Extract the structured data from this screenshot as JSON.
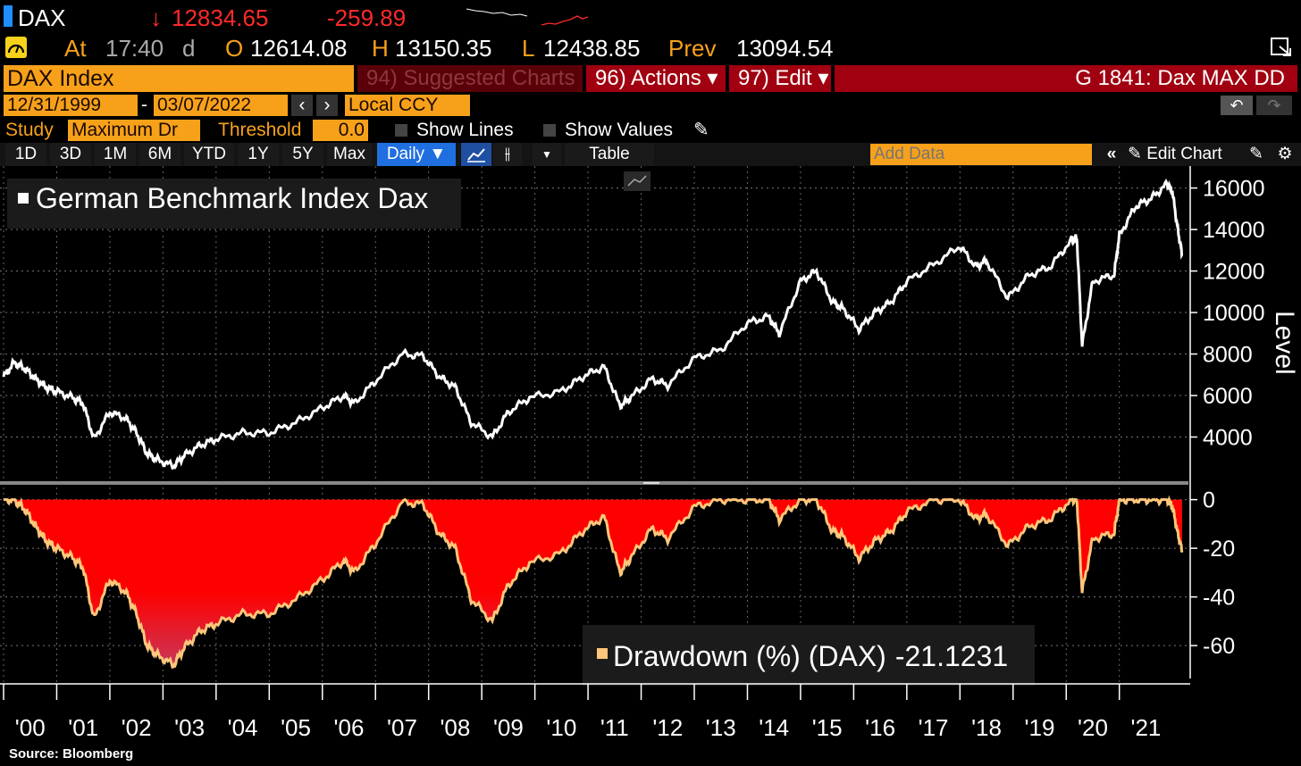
{
  "quote": {
    "ticker": "DAX",
    "arrow": "↓",
    "last": "12834.65",
    "change": "-259.89",
    "at_label": "At",
    "time": "17:40",
    "time_suffix": "d",
    "open_label": "O",
    "open": "12614.08",
    "high_label": "H",
    "high": "13150.35",
    "low_label": "L",
    "low": "12438.85",
    "prev_label": "Prev",
    "prev": "13094.54"
  },
  "header": {
    "security": "DAX Index",
    "suggested": "94) Suggested Charts",
    "actions": "96) Actions ▾",
    "edit": "97) Edit ▾",
    "chart_id": "G 1841: Dax MAX DD"
  },
  "range": {
    "start": "12/31/1999",
    "sep": "-",
    "end": "03/07/2022",
    "currency": "Local CCY"
  },
  "study": {
    "label": "Study",
    "value": "Maximum Dr",
    "threshold_label": "Threshold",
    "threshold": "0.0",
    "show_lines": "Show Lines",
    "show_values": "Show Values"
  },
  "toolbar": {
    "periods": [
      "1D",
      "3D",
      "1M",
      "6M",
      "YTD",
      "1Y",
      "5Y",
      "Max"
    ],
    "frequency": "Daily ▼",
    "table": "Table",
    "add_data_placeholder": "Add Data",
    "edit_chart": "Edit Chart"
  },
  "source": "Source:  Bloomberg",
  "colors": {
    "accent_orange": "#f7a11a",
    "header_red": "#a00010",
    "drawdown_fill": "#ff0000",
    "drawdown_line": "#ffc77a",
    "price_line": "#ffffff"
  },
  "chart_data": [
    {
      "type": "line",
      "title": "German Benchmark Index Dax",
      "ylabel": "Level",
      "ylim": [
        2000,
        16800
      ],
      "yticks": [
        4000,
        6000,
        8000,
        10000,
        12000,
        14000,
        16000
      ],
      "x": [
        2000.0,
        2000.2,
        2000.4,
        2000.6,
        2000.8,
        2001.0,
        2001.3,
        2001.5,
        2001.7,
        2002.0,
        2002.3,
        2002.5,
        2002.7,
        2002.9,
        2003.2,
        2003.4,
        2003.7,
        2004.0,
        2004.5,
        2005.0,
        2005.5,
        2006.0,
        2006.4,
        2006.6,
        2007.0,
        2007.5,
        2007.9,
        2008.2,
        2008.5,
        2008.8,
        2009.2,
        2009.5,
        2009.9,
        2010.5,
        2010.9,
        2011.3,
        2011.6,
        2011.8,
        2012.2,
        2012.5,
        2013.0,
        2013.5,
        2014.0,
        2014.4,
        2014.6,
        2015.0,
        2015.3,
        2015.6,
        2015.8,
        2016.1,
        2016.4,
        2016.7,
        2017.0,
        2017.5,
        2018.0,
        2018.3,
        2018.5,
        2018.9,
        2019.3,
        2019.7,
        2020.1,
        2020.2,
        2020.3,
        2020.5,
        2020.9,
        2021.0,
        2021.3,
        2021.6,
        2021.9,
        2022.0,
        2022.1,
        2022.18
      ],
      "series": [
        {
          "values": [
            6900,
            7600,
            7300,
            6800,
            6400,
            6200,
            5900,
            5600,
            3900,
            5200,
            4900,
            4200,
            3200,
            2900,
            2600,
            3100,
            3600,
            3900,
            4200,
            4200,
            4700,
            5400,
            6000,
            5600,
            6700,
            8000,
            7900,
            6900,
            6400,
            4700,
            4000,
            5200,
            5900,
            6200,
            6900,
            7400,
            5500,
            5900,
            6800,
            6500,
            7800,
            8200,
            9500,
            9800,
            9000,
            11500,
            12000,
            10500,
            10200,
            9200,
            10000,
            10500,
            11500,
            12300,
            13200,
            12200,
            12500,
            10700,
            11800,
            12200,
            13500,
            13600,
            8400,
            11500,
            11800,
            13700,
            15100,
            15500,
            16200,
            15800,
            14000,
            12800
          ]
        }
      ]
    },
    {
      "type": "area",
      "series": [
        {
          "name": "Drawdown (%) (DAX)",
          "last_value": "-21.1231",
          "values": [
            0,
            0,
            -4,
            -11,
            -17,
            -20,
            -24,
            -28,
            -49,
            -33,
            -38,
            -47,
            -60,
            -64,
            -68,
            -61,
            -54,
            -51,
            -47,
            -47,
            -41,
            -33,
            -25,
            -30,
            -18,
            -1,
            -2,
            -14,
            -20,
            -41,
            -50,
            -35,
            -26,
            -22,
            -13,
            -7,
            -30,
            -24,
            -12,
            -16,
            -3,
            0,
            0,
            0,
            -8,
            0,
            0,
            -13,
            -15,
            -24,
            -17,
            -13,
            -5,
            0,
            0,
            -8,
            -6,
            -19,
            -11,
            -8,
            0,
            0,
            -38,
            -16,
            -14,
            0,
            0,
            0,
            0,
            -3,
            -14,
            -21
          ]
        }
      ],
      "ylim": [
        -75,
        5
      ],
      "yticks": [
        0,
        -20,
        -40,
        -60
      ]
    }
  ],
  "x_axis_labels": [
    "'00",
    "'01",
    "'02",
    "'03",
    "'04",
    "'05",
    "'06",
    "'07",
    "'08",
    "'09",
    "'10",
    "'11",
    "'12",
    "'13",
    "'14",
    "'15",
    "'16",
    "'17",
    "'18",
    "'19",
    "'20",
    "'21"
  ]
}
